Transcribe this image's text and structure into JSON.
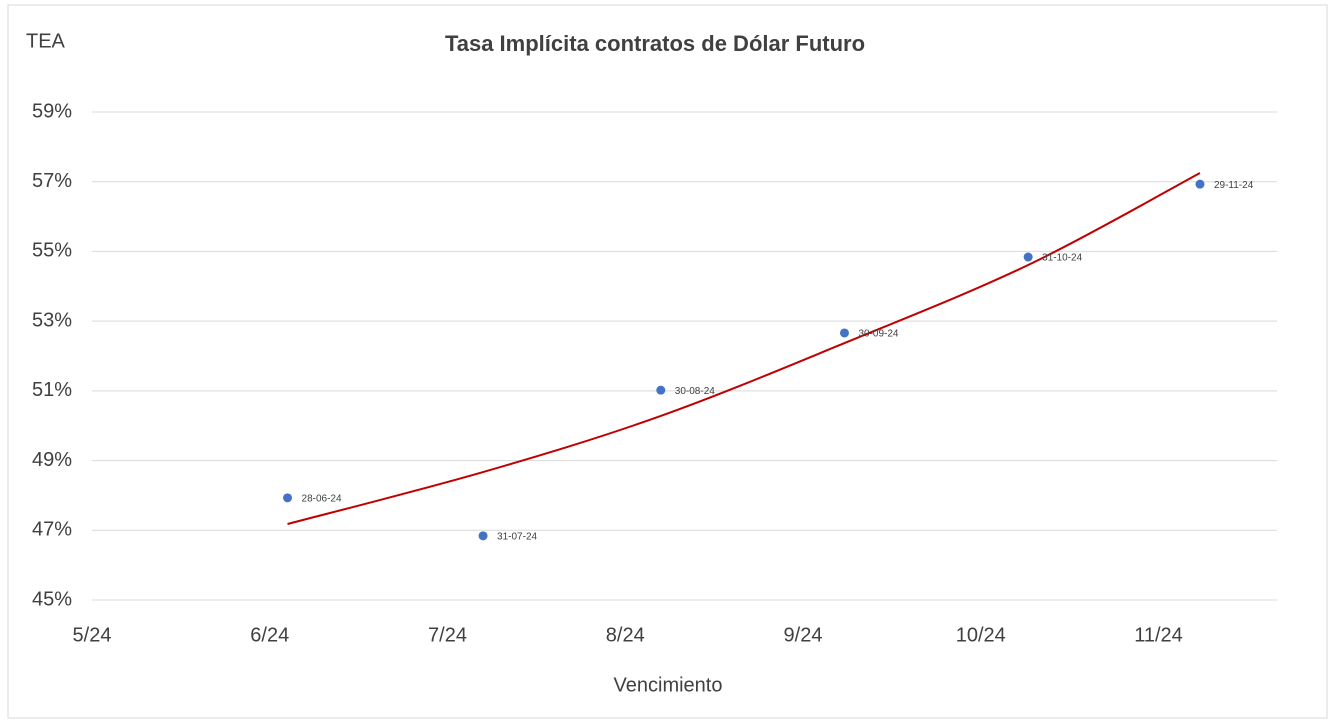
{
  "chart_data": {
    "type": "scatter",
    "title": "Tasa Implícita contratos de Dólar Futuro",
    "ylabel": "TEA",
    "xlabel": "Vencimiento",
    "x": [
      "2024-06-28",
      "2024-07-31",
      "2024-08-30",
      "2024-09-30",
      "2024-10-31",
      "2024-11-29"
    ],
    "point_labels": [
      "28-06-24",
      "31-07-24",
      "30-08-24",
      "30-09-24",
      "31-10-24",
      "29-11-24"
    ],
    "values": [
      47.93,
      46.84,
      51.02,
      52.66,
      54.84,
      56.93
    ],
    "color": "#4472c4",
    "trendline": {
      "color": "#c00000",
      "x": [
        "2024-06-28",
        "2024-07-31",
        "2024-08-30",
        "2024-09-30",
        "2024-10-31",
        "2024-11-29"
      ],
      "values": [
        47.18,
        48.67,
        50.28,
        52.37,
        54.61,
        57.25
      ]
    },
    "xlim": [
      "2024-05-26",
      "2024-12-12"
    ],
    "xticks": [
      {
        "value": "2024-05-26",
        "label": "5/24"
      },
      {
        "value": "2024-06-25",
        "label": "6/24"
      },
      {
        "value": "2024-07-25",
        "label": "7/24"
      },
      {
        "value": "2024-08-24",
        "label": "8/24"
      },
      {
        "value": "2024-09-23",
        "label": "9/24"
      },
      {
        "value": "2024-10-23",
        "label": "10/24"
      },
      {
        "value": "2024-11-22",
        "label": "11/24"
      }
    ],
    "ylim": [
      45,
      59
    ],
    "yticks": [
      {
        "value": 45,
        "label": "45%"
      },
      {
        "value": 47,
        "label": "47%"
      },
      {
        "value": 49,
        "label": "49%"
      },
      {
        "value": 51,
        "label": "51%"
      },
      {
        "value": 53,
        "label": "53%"
      },
      {
        "value": 55,
        "label": "55%"
      },
      {
        "value": 57,
        "label": "57%"
      },
      {
        "value": 59,
        "label": "59%"
      }
    ],
    "grid": true
  }
}
